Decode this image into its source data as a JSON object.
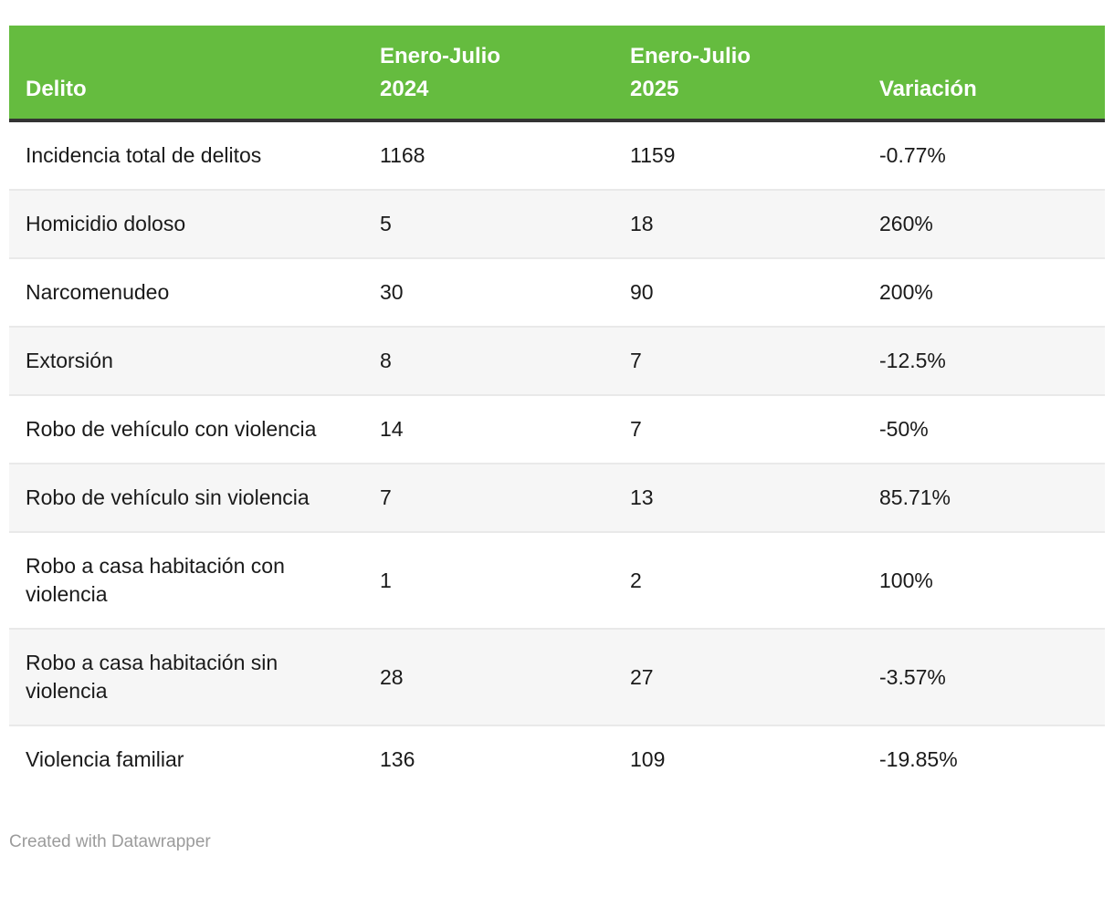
{
  "chart_data": {
    "type": "table",
    "columns": [
      "Delito",
      "Enero-Julio\n2024",
      "Enero-Julio\n2025",
      "Variación"
    ],
    "rows": [
      [
        "Incidencia total de delitos",
        "1168",
        "1159",
        "-0.77%"
      ],
      [
        "Homicidio doloso",
        "5",
        "18",
        "260%"
      ],
      [
        "Narcomenudeo",
        "30",
        "90",
        "200%"
      ],
      [
        "Extorsión",
        "8",
        "7",
        "-12.5%"
      ],
      [
        "Robo de vehículo con violencia",
        "14",
        "7",
        "-50%"
      ],
      [
        "Robo de vehículo sin violencia",
        "7",
        "13",
        "85.71%"
      ],
      [
        "Robo a casa habitación con violencia",
        "1",
        "2",
        "100%"
      ],
      [
        "Robo a casa habitación sin violencia",
        "28",
        "27",
        "-3.57%"
      ],
      [
        "Violencia familiar",
        "136",
        "109",
        "-19.85%"
      ]
    ],
    "layout_hints": {
      "striped_rows": true,
      "header_position": "top",
      "stripe_pattern": "even rows white, odd rows gray (1-indexed: 2,4,6,8 gray)"
    }
  },
  "footer": {
    "credit": "Created with Datawrapper"
  },
  "colors": {
    "header_bg": "#65bc3f",
    "header_text": "#ffffff",
    "header_border": "#333333",
    "body_text": "#1a1a1a",
    "row_alt": "#f6f6f6",
    "divider": "#e9e9e9",
    "credit_text": "#9b9b9b"
  }
}
